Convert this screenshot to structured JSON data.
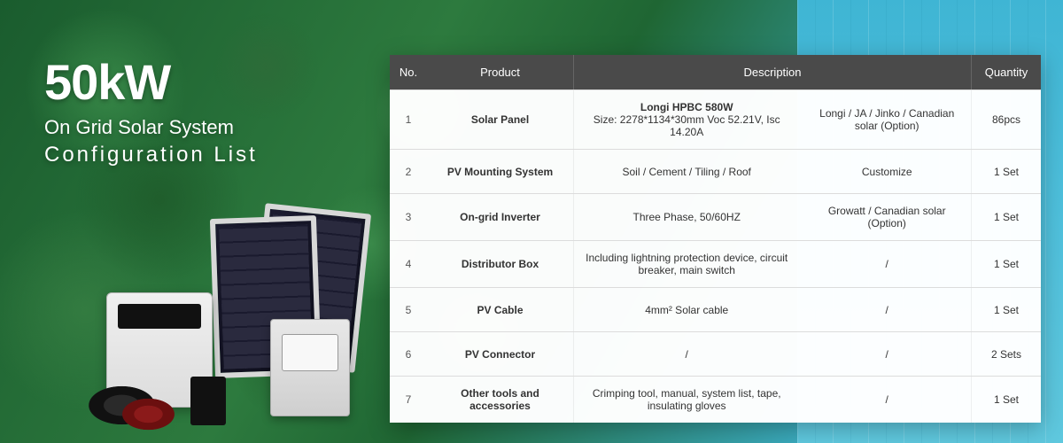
{
  "heading": {
    "power": "50kW",
    "line1": "On Grid Solar System",
    "line2": "Configuration  List"
  },
  "table": {
    "headers": {
      "no": "No.",
      "product": "Product",
      "description": "Description",
      "quantity": "Quantity"
    },
    "rows": [
      {
        "no": "1",
        "product": "Solar Panel",
        "desc1_bold": "Longi HPBC 580W",
        "desc1_rest": "Size: 2278*1134*30mm Voc 52.21V, Isc 14.20A",
        "desc2": "Longi / JA / Jinko / Canadian solar (Option)",
        "qty": "86pcs"
      },
      {
        "no": "2",
        "product": "PV Mounting System",
        "desc1": "Soil / Cement / Tiling / Roof",
        "desc2": "Customize",
        "qty": "1 Set"
      },
      {
        "no": "3",
        "product": "On-grid Inverter",
        "desc1": "Three Phase, 50/60HZ",
        "desc2": "Growatt / Canadian solar (Option)",
        "qty": "1 Set"
      },
      {
        "no": "4",
        "product": "Distributor Box",
        "desc1": "Including lightning protection device, circuit breaker, main switch",
        "desc2": "/",
        "qty": "1 Set"
      },
      {
        "no": "5",
        "product": "PV Cable",
        "desc1": "4mm² Solar cable",
        "desc2": "/",
        "qty": "1 Set"
      },
      {
        "no": "6",
        "product": "PV Connector",
        "desc1": "/",
        "desc2": "/",
        "qty": "2 Sets"
      },
      {
        "no": "7",
        "product": "Other tools and accessories",
        "desc1": "Crimping tool, manual, system list, tape, insulating gloves",
        "desc2": "/",
        "qty": "1 Set"
      }
    ]
  },
  "colors": {
    "header_bg": "#4a4a4a",
    "header_fg": "#ffffff",
    "row_border": "#dcdcdc",
    "page_bg_forest": "#2d7a3e",
    "page_bg_water": "#4fc0dc",
    "text": "#333333"
  }
}
